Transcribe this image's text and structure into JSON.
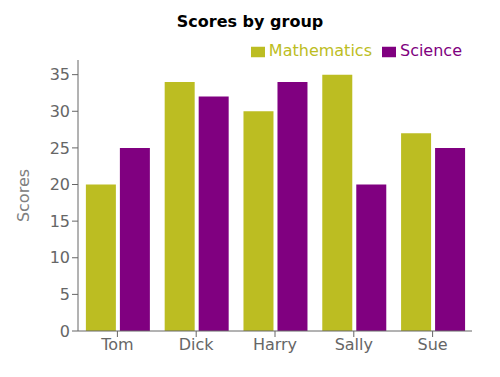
{
  "chart_data": {
    "type": "bar",
    "title": "Scores by group",
    "categories": [
      "Tom",
      "Dick",
      "Harry",
      "Sally",
      "Sue"
    ],
    "series": [
      {
        "name": "Mathematics",
        "color": "#bcbd22",
        "values": [
          20,
          34,
          30,
          35,
          27
        ]
      },
      {
        "name": "Science",
        "color": "#800080",
        "values": [
          25,
          32,
          34,
          20,
          25
        ]
      }
    ],
    "ylabel": "Scores",
    "ylim": [
      0,
      37
    ],
    "yticks": [
      0,
      5,
      10,
      15,
      20,
      25,
      30,
      35
    ],
    "grid": false,
    "legend": "upper right"
  }
}
